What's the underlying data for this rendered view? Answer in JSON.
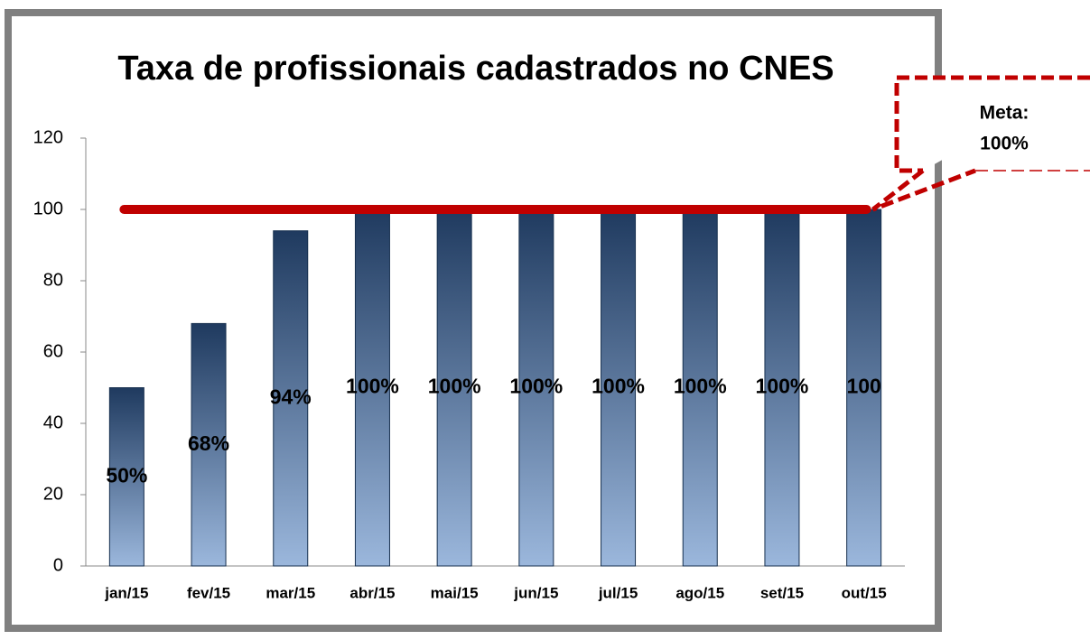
{
  "chart_data": {
    "type": "bar",
    "title": "Taxa de profissionais cadastrados no CNES",
    "categories": [
      "jan/15",
      "fev/15",
      "mar/15",
      "abr/15",
      "mai/15",
      "jun/15",
      "jul/15",
      "ago/15",
      "set/15",
      "out/15"
    ],
    "values": [
      50,
      68,
      94,
      100,
      100,
      100,
      100,
      100,
      100,
      100
    ],
    "value_labels": [
      "50%",
      "68%",
      "94%",
      "100%",
      "100%",
      "100%",
      "100%",
      "100%",
      "100%",
      "100"
    ],
    "color": "#1f3a5f",
    "ylim": [
      0,
      120
    ],
    "yticks": [
      0,
      20,
      40,
      60,
      80,
      100,
      120
    ],
    "grid": false,
    "target_line": {
      "value": 100,
      "color": "#c00000"
    },
    "annotation": [
      "Meta:",
      "100%"
    ]
  }
}
